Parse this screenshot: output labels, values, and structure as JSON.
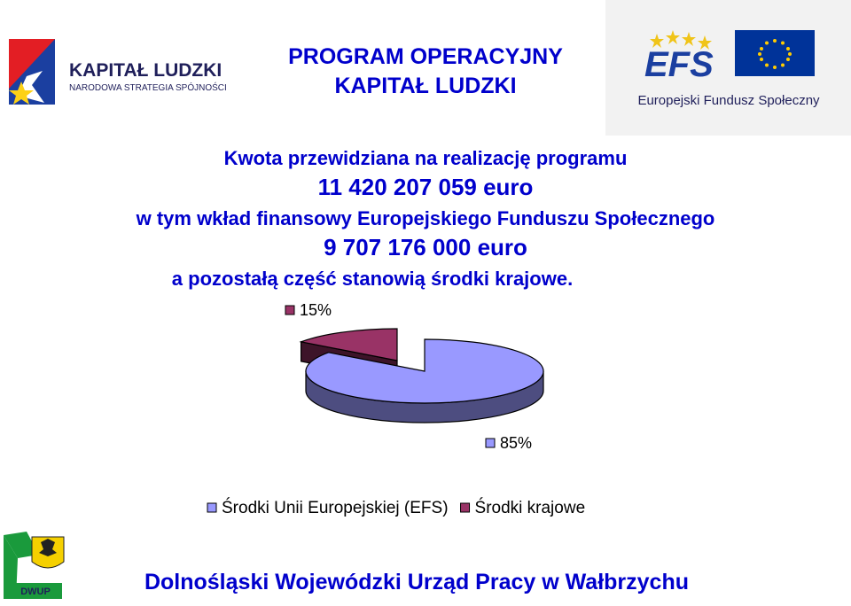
{
  "header": {
    "kl_logo_title": "KAPITAŁ LUDZKI",
    "kl_logo_subtitle": "NARODOWA STRATEGIA SPÓJNOŚCI",
    "program_line1": "PROGRAM   OPERACYJNY",
    "program_line2": "KAPITAŁ LUDZKI",
    "efs_logo_text": "EFS",
    "efs_caption": "Europejski Fundusz Społeczny"
  },
  "info": {
    "line1": "Kwota przewidziana na realizację programu",
    "line2": "11 420 207 059 euro",
    "line3": "w tym wkład finansowy Europejskiego Funduszu Społecznego",
    "line4": "9 707 176 000  euro",
    "line5": "a pozostałą część stanowią środki krajowe."
  },
  "chart_data": {
    "type": "pie",
    "categories": [
      "Środki Unii Europejskiej (EFS)",
      "Środki krajowe"
    ],
    "values": [
      85,
      15
    ],
    "data_labels": [
      "85%",
      "15%"
    ],
    "colors": [
      "#9999ff",
      "#993366"
    ],
    "legend_position": "bottom",
    "exploded": true,
    "three_d": true
  },
  "footer": {
    "dwup_logo_text": "DWUP",
    "office_name": "Dolnośląski Wojewódzki Urząd Pracy w Wałbrzychu"
  }
}
